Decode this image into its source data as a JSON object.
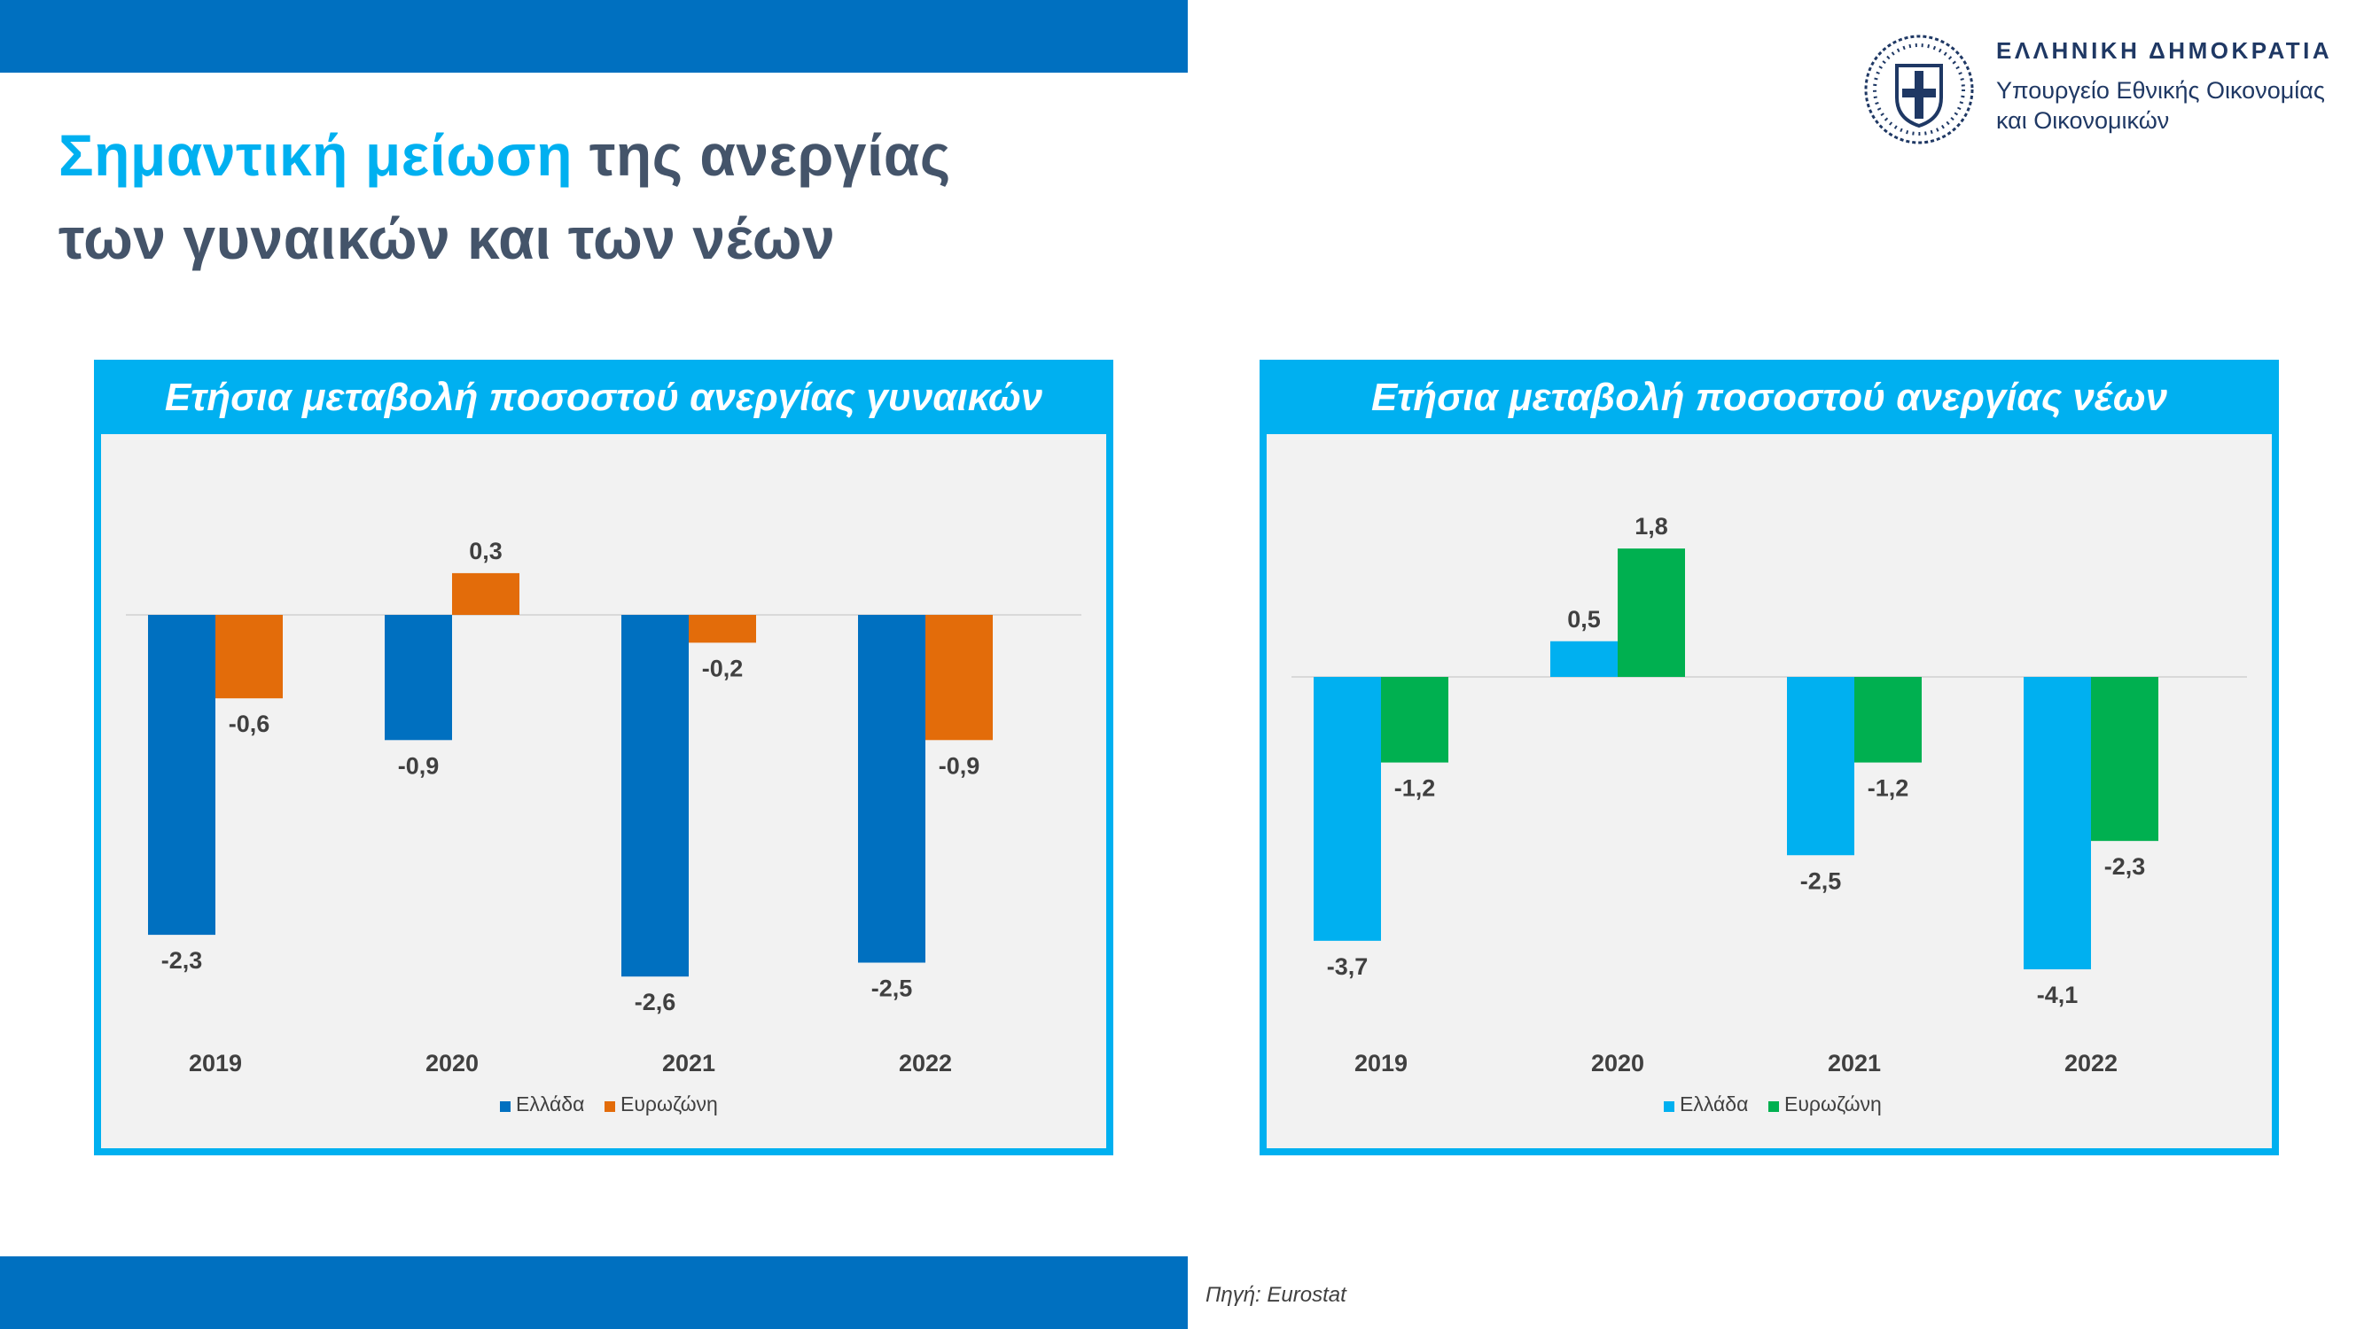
{
  "header": {
    "title_highlight": "Σημαντική μείωση",
    "title_rest_line1": " της ανεργίας",
    "title_line2": "των γυναικών και των νέων"
  },
  "ministry": {
    "line1": "ΕΛΛΗΝΙΚΗ ΔΗΜΟΚΡΑΤΙΑ",
    "line2": "Υπουργείο Εθνικής Οικονομίας",
    "line3": "και Οικονομικών"
  },
  "footer": {
    "source": "Πηγή: Eurostat"
  },
  "colors": {
    "bar_top": "#0070c0",
    "panel_border": "#00b0f0",
    "title_text": "#44546a",
    "title_highlight": "#00b0f0"
  },
  "chart_data": [
    {
      "type": "bar",
      "title": "Ετήσια μεταβολή ποσοστού ανεργίας γυναικών",
      "categories": [
        "2019",
        "2020",
        "2021",
        "2022"
      ],
      "series": [
        {
          "name": "Ελλάδα",
          "values": [
            -2.3,
            -0.9,
            -2.6,
            -2.5
          ],
          "labels": [
            "-2,3",
            "-0,9",
            "-2,6",
            "-2,5"
          ],
          "color": "#0070c0"
        },
        {
          "name": "Ευρωζώνη",
          "values": [
            -0.6,
            0.3,
            -0.2,
            -0.9
          ],
          "labels": [
            "-0,6",
            "0,3",
            "-0,2",
            "-0,9"
          ],
          "color": "#e36c0a"
        }
      ],
      "legend": "bottom-center",
      "grid": false
    },
    {
      "type": "bar",
      "title": "Ετήσια μεταβολή ποσοστού ανεργίας νέων",
      "categories": [
        "2019",
        "2020",
        "2021",
        "2022"
      ],
      "series": [
        {
          "name": "Ελλάδα",
          "values": [
            -3.7,
            0.5,
            -2.5,
            -4.1
          ],
          "labels": [
            "-3,7",
            "0,5",
            "-2,5",
            "-4,1"
          ],
          "color": "#00b0f0"
        },
        {
          "name": "Ευρωζώνη",
          "values": [
            -1.2,
            1.8,
            -1.2,
            -2.3
          ],
          "labels": [
            "-1,2",
            "1,8",
            "-1,2",
            "-2,3"
          ],
          "color": "#00b050"
        }
      ],
      "legend": "bottom-center",
      "grid": false
    }
  ]
}
